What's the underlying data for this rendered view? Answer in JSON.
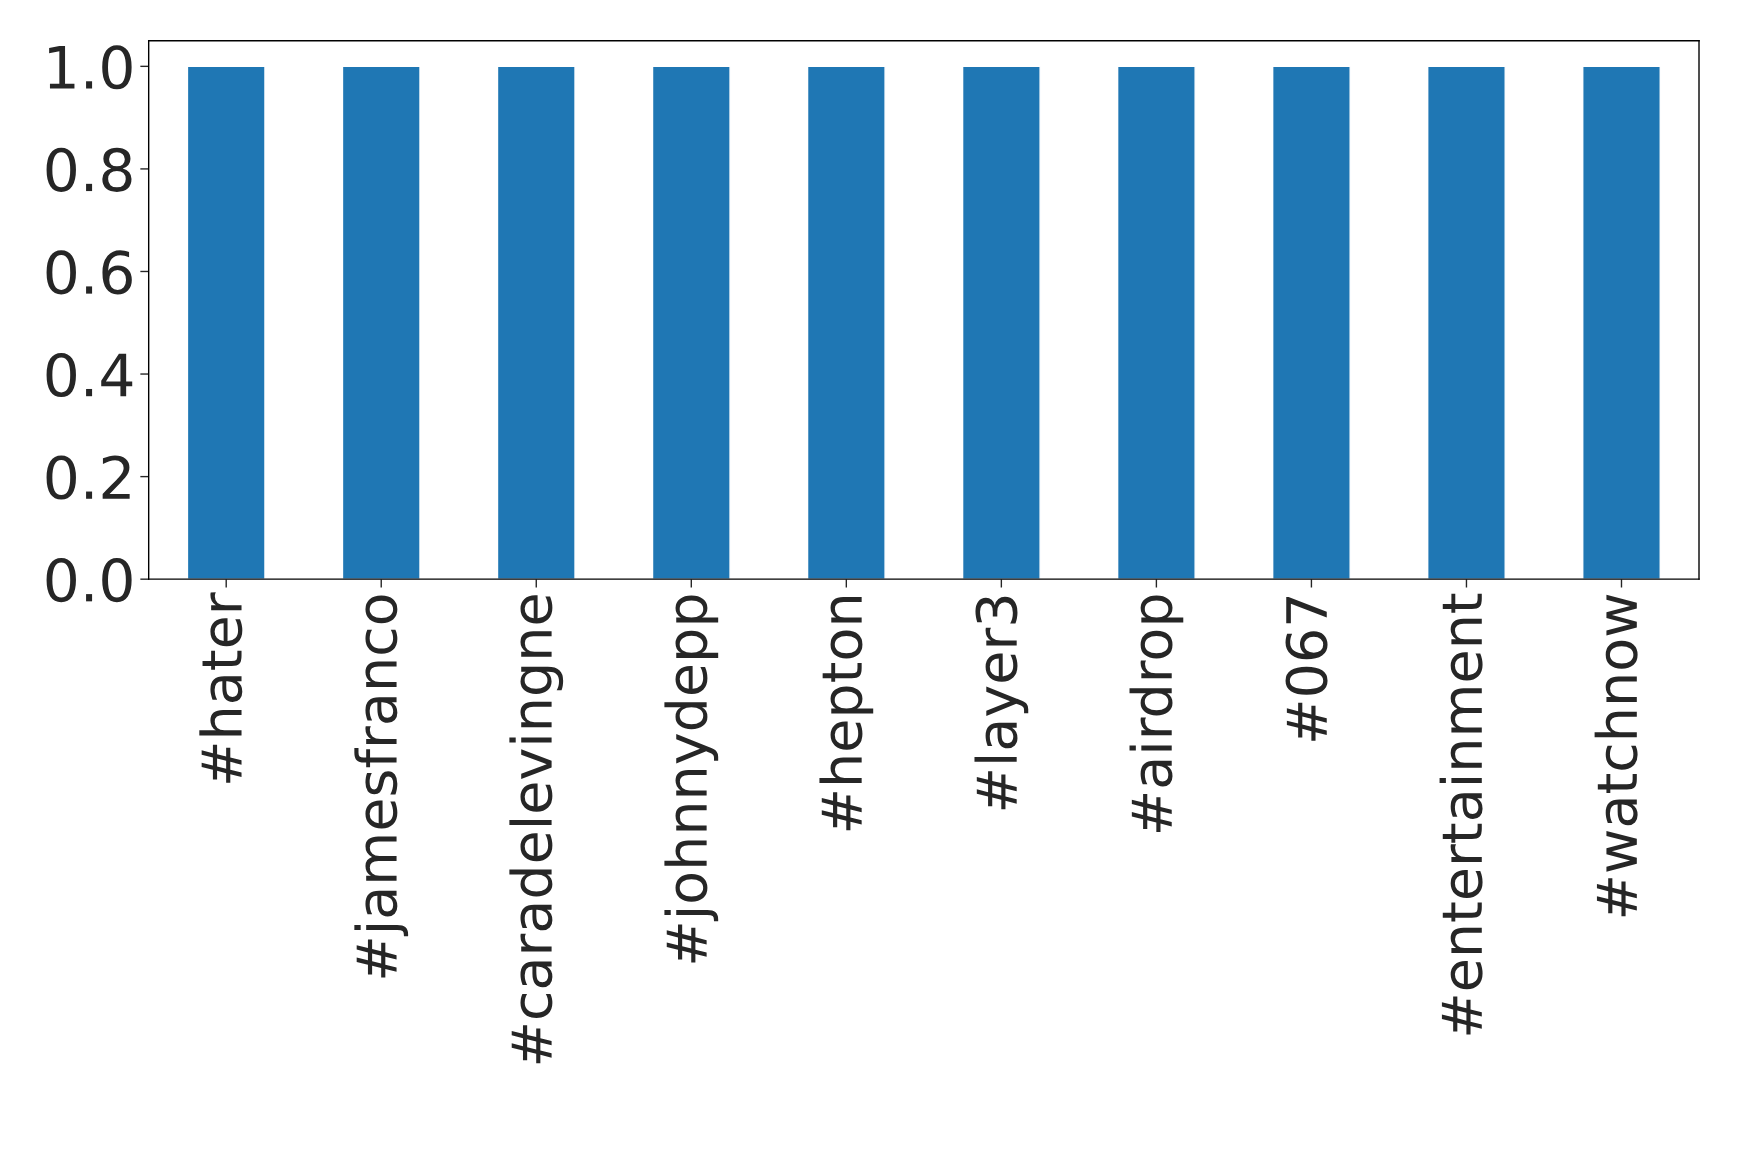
{
  "chart_data": {
    "type": "bar",
    "categories": [
      "#hater",
      "#jamesfranco",
      "#caradelevingne",
      "#johnnydepp",
      "#hepton",
      "#layer3",
      "#airdrop",
      "#067",
      "#entertainment",
      "#watchnow"
    ],
    "values": [
      1.0,
      1.0,
      1.0,
      1.0,
      1.0,
      1.0,
      1.0,
      1.0,
      1.0,
      1.0
    ],
    "color": "#1f77b4",
    "ylim": [
      0,
      1.05
    ],
    "yticks": [
      {
        "value": 0,
        "label": "0.0"
      },
      {
        "value": 0.2,
        "label": "0.2"
      },
      {
        "value": 0.4,
        "label": "0.4"
      },
      {
        "value": 0.6,
        "label": "0.6"
      },
      {
        "value": 0.8,
        "label": "0.8"
      },
      {
        "value": 1.0,
        "label": "1.0"
      }
    ],
    "grid": false,
    "legend": false
  }
}
